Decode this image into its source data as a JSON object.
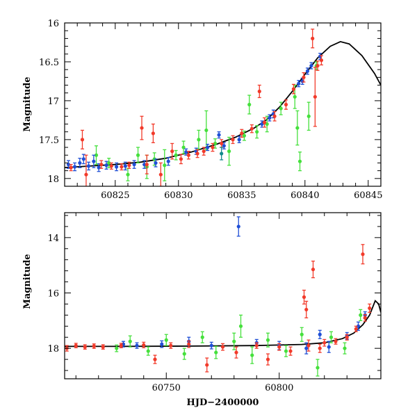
{
  "colors": {
    "blue": "#1f4fd6",
    "green": "#45e03c",
    "red": "#f23a2a",
    "teal": "#118a8c",
    "model": "#000000"
  },
  "chart_data": [
    {
      "type": "scatter",
      "panel": "top",
      "title": "",
      "xlabel": "",
      "ylabel": "Magnitude",
      "xlim": [
        60821,
        60846
      ],
      "ylim": [
        16,
        18.1
      ],
      "y_inverted": true,
      "xticks": [
        60825,
        60830,
        60835,
        60840,
        60845
      ],
      "xtick_labels": [
        "60825",
        "60830",
        "60835",
        "60840",
        "60845"
      ],
      "yticks": [
        16,
        16.5,
        17,
        17.5,
        18
      ],
      "ytick_labels": [
        "16",
        "16.5",
        "17",
        "17.5",
        "18"
      ],
      "grid": false,
      "model_curve": {
        "x": [
          60821,
          60823,
          60825,
          60827,
          60829,
          60831,
          60833,
          60834.5,
          60836,
          60837,
          60838,
          60839,
          60840,
          60841,
          60842,
          60842.8,
          60843.5,
          60844.5,
          60845.5,
          60846
        ],
        "y": [
          17.86,
          17.84,
          17.82,
          17.79,
          17.74,
          17.66,
          17.56,
          17.47,
          17.35,
          17.24,
          17.08,
          16.88,
          16.66,
          16.45,
          16.3,
          16.24,
          16.27,
          16.42,
          16.65,
          16.8
        ]
      },
      "series": [
        {
          "color": "blue",
          "points": [
            [
              60821.3,
              17.82,
              0.05
            ],
            [
              60821.8,
              17.85,
              0.05
            ],
            [
              60822.2,
              17.8,
              0.06
            ],
            [
              60822.5,
              17.75,
              0.06
            ],
            [
              60822.9,
              17.84,
              0.05
            ],
            [
              60823.3,
              17.78,
              0.08
            ],
            [
              60823.7,
              17.86,
              0.05
            ],
            [
              60824.3,
              17.83,
              0.05
            ],
            [
              60825.1,
              17.85,
              0.05
            ],
            [
              60825.8,
              17.84,
              0.05
            ],
            [
              60826.5,
              17.82,
              0.05
            ],
            [
              60827.3,
              17.82,
              0.05
            ],
            [
              60828.2,
              17.8,
              0.05
            ],
            [
              60829.2,
              17.78,
              0.05
            ],
            [
              60830.6,
              17.66,
              0.04
            ],
            [
              60831.4,
              17.65,
              0.04
            ],
            [
              60832.3,
              17.6,
              0.04
            ],
            [
              60833.2,
              17.44,
              0.04
            ],
            [
              60833.6,
              17.58,
              0.04
            ],
            [
              60834.8,
              17.5,
              0.04
            ],
            [
              60836.6,
              17.3,
              0.04
            ],
            [
              60837.2,
              17.22,
              0.04
            ],
            [
              60837.5,
              17.17,
              0.05
            ],
            [
              60839.5,
              16.78,
              0.04
            ],
            [
              60839.8,
              16.75,
              0.04
            ],
            [
              60840.2,
              16.62,
              0.04
            ],
            [
              60840.5,
              16.55,
              0.04
            ],
            [
              60841.2,
              16.43,
              0.04
            ]
          ]
        },
        {
          "color": "green",
          "points": [
            [
              60823.5,
              17.7,
              0.12
            ],
            [
              60824.5,
              17.8,
              0.06
            ],
            [
              60826.0,
              17.95,
              0.08
            ],
            [
              60826.8,
              17.7,
              0.1
            ],
            [
              60827.5,
              17.85,
              0.15
            ],
            [
              60828.1,
              17.75,
              0.08
            ],
            [
              60828.9,
              17.83,
              0.2
            ],
            [
              60829.8,
              17.7,
              0.06
            ],
            [
              60830.4,
              17.6,
              0.08
            ],
            [
              60831.6,
              17.5,
              0.12
            ],
            [
              60832.2,
              17.38,
              0.25
            ],
            [
              60832.9,
              17.55,
              0.06
            ],
            [
              60834.0,
              17.65,
              0.18
            ],
            [
              60835.2,
              17.45,
              0.06
            ],
            [
              60835.6,
              17.05,
              0.12
            ],
            [
              60836.2,
              17.4,
              0.08
            ],
            [
              60837.0,
              17.3,
              0.1
            ],
            [
              60838.1,
              17.1,
              0.08
            ],
            [
              60839.2,
              16.95,
              0.15
            ],
            [
              60839.4,
              17.35,
              0.22
            ],
            [
              60839.6,
              17.78,
              0.12
            ],
            [
              60840.3,
              17.2,
              0.18
            ],
            [
              60840.9,
              16.55,
              0.05
            ]
          ]
        },
        {
          "color": "red",
          "points": [
            [
              60821.5,
              17.86,
              0.04
            ],
            [
              60822.4,
              17.5,
              0.12
            ],
            [
              60822.7,
              17.95,
              0.25
            ],
            [
              60823.9,
              17.82,
              0.05
            ],
            [
              60824.7,
              17.84,
              0.04
            ],
            [
              60825.5,
              17.85,
              0.04
            ],
            [
              60826.1,
              17.83,
              0.04
            ],
            [
              60827.1,
              17.35,
              0.15
            ],
            [
              60827.5,
              17.82,
              0.12
            ],
            [
              60828.0,
              17.42,
              0.12
            ],
            [
              60828.6,
              17.95,
              0.15
            ],
            [
              60829.5,
              17.65,
              0.1
            ],
            [
              60830.2,
              17.75,
              0.06
            ],
            [
              60830.8,
              17.7,
              0.05
            ],
            [
              60831.5,
              17.68,
              0.05
            ],
            [
              60832.0,
              17.65,
              0.05
            ],
            [
              60832.7,
              17.6,
              0.05
            ],
            [
              60833.4,
              17.55,
              0.05
            ],
            [
              60834.3,
              17.5,
              0.05
            ],
            [
              60835.0,
              17.42,
              0.05
            ],
            [
              60835.8,
              17.36,
              0.05
            ],
            [
              60836.4,
              16.88,
              0.08
            ],
            [
              60836.8,
              17.28,
              0.06
            ],
            [
              60837.6,
              17.2,
              0.06
            ],
            [
              60838.5,
              17.05,
              0.06
            ],
            [
              60839.1,
              16.85,
              0.06
            ],
            [
              60839.9,
              16.7,
              0.06
            ],
            [
              60840.6,
              16.2,
              0.12
            ],
            [
              60840.8,
              16.95,
              0.38
            ],
            [
              60841.0,
              16.55,
              0.06
            ],
            [
              60841.3,
              16.48,
              0.06
            ]
          ]
        },
        {
          "color": "teal",
          "points": [
            [
              60833.4,
              17.68,
              0.08
            ]
          ]
        }
      ]
    },
    {
      "type": "scatter",
      "panel": "bottom",
      "title": "",
      "xlabel": "HJD−2400000",
      "ylabel": "Magnitude",
      "xlim": [
        60705,
        60845
      ],
      "ylim": [
        13.1,
        19.1
      ],
      "y_inverted": true,
      "xticks": [
        60750,
        60800
      ],
      "xtick_labels": [
        "60750",
        "60800"
      ],
      "yticks": [
        14,
        16,
        18
      ],
      "ytick_labels": [
        "14",
        "16",
        "18"
      ],
      "grid": false,
      "model_curve": {
        "x": [
          60705,
          60730,
          60760,
          60790,
          60810,
          60820,
          60828,
          60833,
          60837,
          60840,
          60842.5,
          60844,
          60845
        ],
        "y": [
          17.93,
          17.93,
          17.92,
          17.9,
          17.86,
          17.8,
          17.65,
          17.45,
          17.15,
          16.8,
          16.28,
          16.4,
          16.7
        ]
      },
      "series": [
        {
          "color": "blue",
          "points": [
            [
              60731,
              17.85,
              0.1
            ],
            [
              60737,
              17.9,
              0.1
            ],
            [
              60748,
              17.85,
              0.12
            ],
            [
              60760,
              17.75,
              0.15
            ],
            [
              60770,
              17.9,
              0.12
            ],
            [
              60782,
              13.6,
              0.35
            ],
            [
              60790,
              17.8,
              0.12
            ],
            [
              60800,
              17.9,
              0.15
            ],
            [
              60812,
              18.0,
              0.2
            ],
            [
              60818,
              17.5,
              0.15
            ],
            [
              60822,
              17.95,
              0.2
            ],
            [
              60830,
              17.55,
              0.12
            ],
            [
              60835,
              17.2,
              0.15
            ],
            [
              60838,
              16.8,
              0.12
            ]
          ]
        },
        {
          "color": "green",
          "points": [
            [
              60728,
              18.0,
              0.12
            ],
            [
              60734,
              17.75,
              0.2
            ],
            [
              60742,
              18.1,
              0.15
            ],
            [
              60750,
              17.7,
              0.2
            ],
            [
              60758,
              18.2,
              0.2
            ],
            [
              60766,
              17.6,
              0.2
            ],
            [
              60772,
              18.15,
              0.22
            ],
            [
              60780,
              17.75,
              0.3
            ],
            [
              60783,
              17.2,
              0.4
            ],
            [
              60788,
              18.25,
              0.3
            ],
            [
              60795,
              17.7,
              0.25
            ],
            [
              60803,
              18.1,
              0.2
            ],
            [
              60810,
              17.5,
              0.25
            ],
            [
              60817,
              18.7,
              0.3
            ],
            [
              60823,
              17.6,
              0.2
            ],
            [
              60829,
              18.0,
              0.2
            ],
            [
              60836,
              16.8,
              0.2
            ]
          ]
        },
        {
          "color": "red",
          "points": [
            [
              60706,
              18.0,
              0.1
            ],
            [
              60710,
              17.9,
              0.08
            ],
            [
              60714,
              17.95,
              0.08
            ],
            [
              60718,
              17.92,
              0.08
            ],
            [
              60722,
              17.95,
              0.08
            ],
            [
              60730,
              17.9,
              0.08
            ],
            [
              60740,
              17.88,
              0.1
            ],
            [
              60745,
              18.4,
              0.15
            ],
            [
              60752,
              17.9,
              0.1
            ],
            [
              60760,
              17.85,
              0.12
            ],
            [
              60768,
              18.6,
              0.25
            ],
            [
              60775,
              17.95,
              0.12
            ],
            [
              60781,
              18.15,
              0.2
            ],
            [
              60790,
              17.9,
              0.1
            ],
            [
              60795,
              18.4,
              0.2
            ],
            [
              60800,
              17.95,
              0.12
            ],
            [
              60805,
              18.1,
              0.15
            ],
            [
              60811,
              16.15,
              0.25
            ],
            [
              60812,
              16.6,
              0.3
            ],
            [
              60813,
              17.9,
              0.2
            ],
            [
              60815,
              15.15,
              0.3
            ],
            [
              60818,
              18.0,
              0.15
            ],
            [
              60820,
              17.8,
              0.12
            ],
            [
              60825,
              17.75,
              0.1
            ],
            [
              60830,
              17.6,
              0.1
            ],
            [
              60834,
              17.3,
              0.1
            ],
            [
              60837,
              14.6,
              0.35
            ],
            [
              60838,
              16.9,
              0.12
            ],
            [
              60840,
              16.55,
              0.15
            ]
          ]
        }
      ]
    }
  ]
}
